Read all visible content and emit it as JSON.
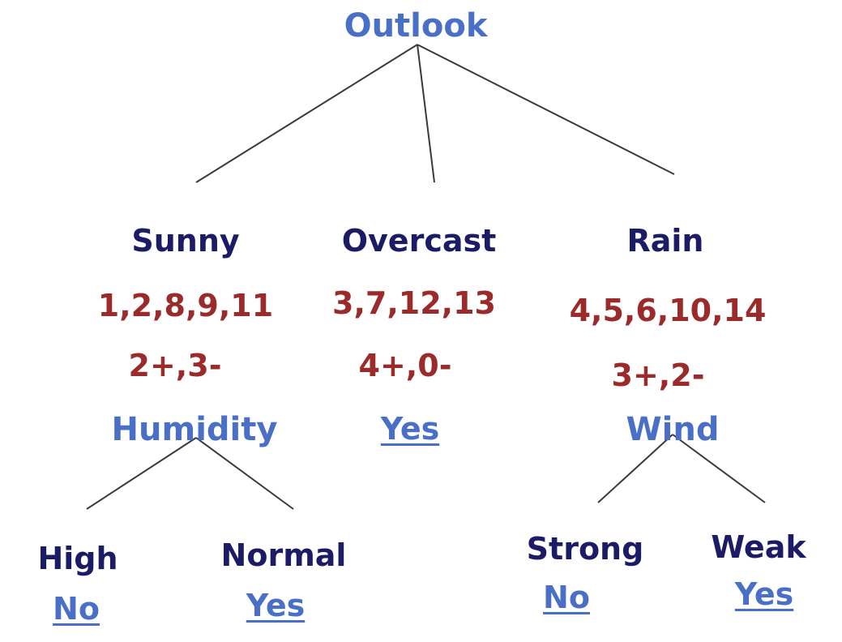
{
  "root": {
    "attribute": "Outlook"
  },
  "branches": [
    {
      "value": "Sunny",
      "examples": "1,2,8,9,11",
      "counts": "2+,3-",
      "node": "Humidity",
      "children": [
        {
          "value": "High",
          "leaf": "No"
        },
        {
          "value": "Normal",
          "leaf": "Yes"
        }
      ]
    },
    {
      "value": "Overcast",
      "examples": "3,7,12,13",
      "counts": "4+,0-",
      "node": "Yes"
    },
    {
      "value": "Rain",
      "examples": "4,5,6,10,14",
      "counts": "3+,2-",
      "node": "Wind",
      "children": [
        {
          "value": "Strong",
          "leaf": "No"
        },
        {
          "value": "Weak",
          "leaf": "Yes"
        }
      ]
    }
  ],
  "colors": {
    "attribute": "#4a6fc6",
    "value": "#1c1c66",
    "numbers": "#9b2a2a",
    "edge": "#3a3a3a"
  }
}
